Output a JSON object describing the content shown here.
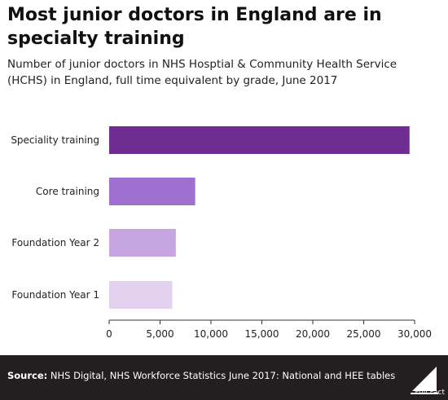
{
  "chart_data": {
    "type": "bar",
    "orientation": "horizontal",
    "title": "Most junior doctors in England are in specialty training",
    "subtitle": "Number of junior doctors in NHS Hosptial & Community Health Service (HCHS) in England, full time equivalent by grade, June 2017",
    "categories": [
      "Speciality training",
      "Core training",
      "Foundation Year 2",
      "Foundation Year 1"
    ],
    "values": [
      29500,
      8450,
      6550,
      6200
    ],
    "bar_colors": [
      "#6f2d91",
      "#a070d0",
      "#c7a5e0",
      "#e2d2f0"
    ],
    "xticks": [
      0,
      5000,
      10000,
      15000,
      20000,
      25000,
      30000
    ],
    "xtick_labels": [
      "0",
      "5,000",
      "10,000",
      "15,000",
      "20,000",
      "25,000",
      "30,000"
    ],
    "xlim": [
      0,
      30000
    ],
    "xlabel": "",
    "ylabel": "",
    "grid": false,
    "legend": "none"
  },
  "footer": {
    "source_label": "Source:",
    "source_text": " NHS Digital, NHS Workforce Statistics June 2017: National and HEE tables",
    "logo_text": "Full Fact"
  }
}
